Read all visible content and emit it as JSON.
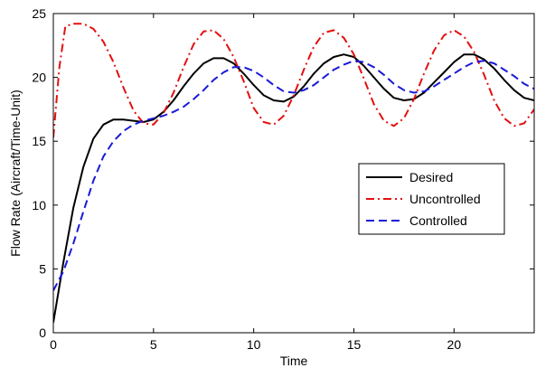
{
  "chart_data": {
    "type": "line",
    "xlabel": "Time",
    "ylabel": "Flow Rate (Aircraft/Time-Unit)",
    "xlim": [
      0,
      24
    ],
    "ylim": [
      0,
      25
    ],
    "xticks": [
      0,
      5,
      10,
      15,
      20
    ],
    "yticks": [
      0,
      5,
      10,
      15,
      20,
      25
    ],
    "grid": false,
    "legend_position": "right-middle",
    "series": [
      {
        "name": "Desired",
        "color": "#000000",
        "dash": "solid",
        "points": [
          [
            0,
            0.8
          ],
          [
            0.5,
            5.5
          ],
          [
            1,
            9.8
          ],
          [
            1.5,
            13
          ],
          [
            2,
            15.2
          ],
          [
            2.5,
            16.3
          ],
          [
            3,
            16.7
          ],
          [
            3.5,
            16.7
          ],
          [
            4,
            16.6
          ],
          [
            4.5,
            16.5
          ],
          [
            5,
            16.7
          ],
          [
            5.5,
            17.3
          ],
          [
            6,
            18.2
          ],
          [
            6.5,
            19.3
          ],
          [
            7,
            20.3
          ],
          [
            7.5,
            21.1
          ],
          [
            8,
            21.5
          ],
          [
            8.5,
            21.5
          ],
          [
            9,
            21.1
          ],
          [
            9.5,
            20.3
          ],
          [
            10,
            19.4
          ],
          [
            10.5,
            18.6
          ],
          [
            11,
            18.2
          ],
          [
            11.5,
            18.1
          ],
          [
            12,
            18.5
          ],
          [
            12.5,
            19.3
          ],
          [
            13,
            20.3
          ],
          [
            13.5,
            21.1
          ],
          [
            14,
            21.6
          ],
          [
            14.5,
            21.8
          ],
          [
            15,
            21.6
          ],
          [
            15.5,
            20.9
          ],
          [
            16,
            20
          ],
          [
            16.5,
            19.1
          ],
          [
            17,
            18.4
          ],
          [
            17.5,
            18.2
          ],
          [
            18,
            18.3
          ],
          [
            18.5,
            18.8
          ],
          [
            19,
            19.6
          ],
          [
            19.5,
            20.4
          ],
          [
            20,
            21.2
          ],
          [
            20.5,
            21.8
          ],
          [
            21,
            21.8
          ],
          [
            21.5,
            21.4
          ],
          [
            22,
            20.7
          ],
          [
            22.5,
            19.8
          ],
          [
            23,
            19
          ],
          [
            23.5,
            18.4
          ],
          [
            24,
            18.2
          ]
        ]
      },
      {
        "name": "Uncontrolled",
        "color": "#e3100f",
        "dash": "dashdot",
        "points": [
          [
            0,
            15.3
          ],
          [
            0.3,
            20.8
          ],
          [
            0.6,
            24
          ],
          [
            1,
            24.2
          ],
          [
            1.5,
            24.2
          ],
          [
            2,
            23.8
          ],
          [
            2.5,
            22.8
          ],
          [
            3,
            21.2
          ],
          [
            3.5,
            19.2
          ],
          [
            4,
            17.4
          ],
          [
            4.5,
            16.4
          ],
          [
            5,
            16.3
          ],
          [
            5.5,
            17.2
          ],
          [
            6,
            18.8
          ],
          [
            6.5,
            20.8
          ],
          [
            7,
            22.6
          ],
          [
            7.5,
            23.6
          ],
          [
            8,
            23.7
          ],
          [
            8.5,
            23
          ],
          [
            9,
            21.6
          ],
          [
            9.5,
            19.7
          ],
          [
            10,
            17.6
          ],
          [
            10.5,
            16.5
          ],
          [
            11,
            16.3
          ],
          [
            11.5,
            17
          ],
          [
            12,
            18.6
          ],
          [
            12.5,
            20.6
          ],
          [
            13,
            22.4
          ],
          [
            13.5,
            23.5
          ],
          [
            14,
            23.7
          ],
          [
            14.5,
            23.1
          ],
          [
            15,
            21.8
          ],
          [
            15.5,
            19.9
          ],
          [
            16,
            17.9
          ],
          [
            16.5,
            16.6
          ],
          [
            17,
            16.2
          ],
          [
            17.5,
            16.8
          ],
          [
            18,
            18.3
          ],
          [
            18.5,
            20.3
          ],
          [
            19,
            22.1
          ],
          [
            19.5,
            23.3
          ],
          [
            20,
            23.7
          ],
          [
            20.5,
            23.2
          ],
          [
            21,
            22
          ],
          [
            21.5,
            20.2
          ],
          [
            22,
            18.2
          ],
          [
            22.5,
            16.8
          ],
          [
            23,
            16.2
          ],
          [
            23.5,
            16.4
          ],
          [
            24,
            17.5
          ]
        ]
      },
      {
        "name": "Controlled",
        "color": "#1a1ad8",
        "dash": "dashed",
        "points": [
          [
            0,
            3.3
          ],
          [
            0.5,
            4.8
          ],
          [
            1,
            7
          ],
          [
            1.5,
            9.5
          ],
          [
            2,
            11.9
          ],
          [
            2.5,
            13.8
          ],
          [
            3,
            15
          ],
          [
            3.5,
            15.8
          ],
          [
            4,
            16.3
          ],
          [
            4.5,
            16.6
          ],
          [
            5,
            16.8
          ],
          [
            5.5,
            17
          ],
          [
            6,
            17.3
          ],
          [
            6.5,
            17.7
          ],
          [
            7,
            18.3
          ],
          [
            7.5,
            19
          ],
          [
            8,
            19.8
          ],
          [
            8.5,
            20.4
          ],
          [
            9,
            20.8
          ],
          [
            9.5,
            20.8
          ],
          [
            10,
            20.5
          ],
          [
            10.5,
            20
          ],
          [
            11,
            19.4
          ],
          [
            11.5,
            18.9
          ],
          [
            12,
            18.8
          ],
          [
            12.5,
            19
          ],
          [
            13,
            19.4
          ],
          [
            13.5,
            20
          ],
          [
            14,
            20.6
          ],
          [
            14.5,
            21
          ],
          [
            15,
            21.3
          ],
          [
            15.5,
            21.2
          ],
          [
            16,
            20.8
          ],
          [
            16.5,
            20.2
          ],
          [
            17,
            19.5
          ],
          [
            17.5,
            19
          ],
          [
            18,
            18.8
          ],
          [
            18.5,
            18.9
          ],
          [
            19,
            19.3
          ],
          [
            19.5,
            19.8
          ],
          [
            20,
            20.3
          ],
          [
            20.5,
            20.8
          ],
          [
            21,
            21.2
          ],
          [
            21.5,
            21.3
          ],
          [
            22,
            21.1
          ],
          [
            22.5,
            20.6
          ],
          [
            23,
            20.1
          ],
          [
            23.5,
            19.5
          ],
          [
            24,
            19.1
          ]
        ]
      }
    ]
  }
}
